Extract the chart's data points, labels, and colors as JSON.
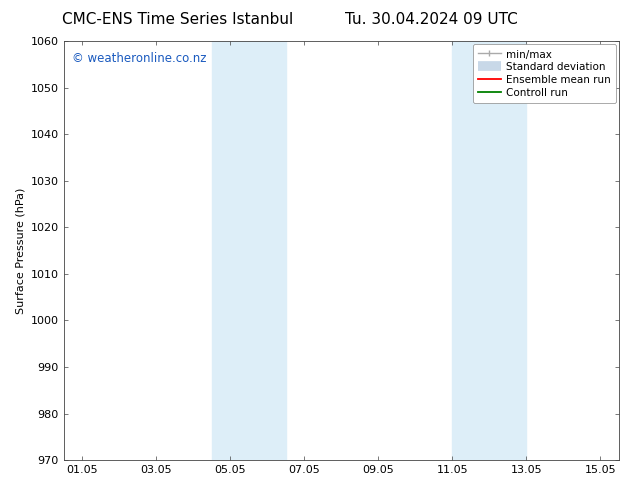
{
  "title_left": "CMC-ENS Time Series Istanbul",
  "title_right": "Tu. 30.04.2024 09 UTC",
  "ylabel": "Surface Pressure (hPa)",
  "ylim": [
    970,
    1060
  ],
  "yticks": [
    970,
    980,
    990,
    1000,
    1010,
    1020,
    1030,
    1040,
    1050,
    1060
  ],
  "xlim": [
    0.5,
    15.5
  ],
  "xtick_labels": [
    "01.05",
    "03.05",
    "05.05",
    "07.05",
    "09.05",
    "11.05",
    "13.05",
    "15.05"
  ],
  "xtick_positions": [
    1,
    3,
    5,
    7,
    9,
    11,
    13,
    15
  ],
  "shading_regions": [
    {
      "start": 4.5,
      "end": 6.5,
      "color": "#ddeef8"
    },
    {
      "start": 11.0,
      "end": 13.0,
      "color": "#ddeef8"
    }
  ],
  "watermark_text": "© weatheronline.co.nz",
  "watermark_color": "#1a5abf",
  "watermark_fontsize": 8.5,
  "bg_color": "#ffffff",
  "plot_bg_color": "#ffffff",
  "grid_color": "#cccccc",
  "title_fontsize": 11,
  "axis_fontsize": 8,
  "tick_fontsize": 8,
  "legend_fontsize": 7.5
}
